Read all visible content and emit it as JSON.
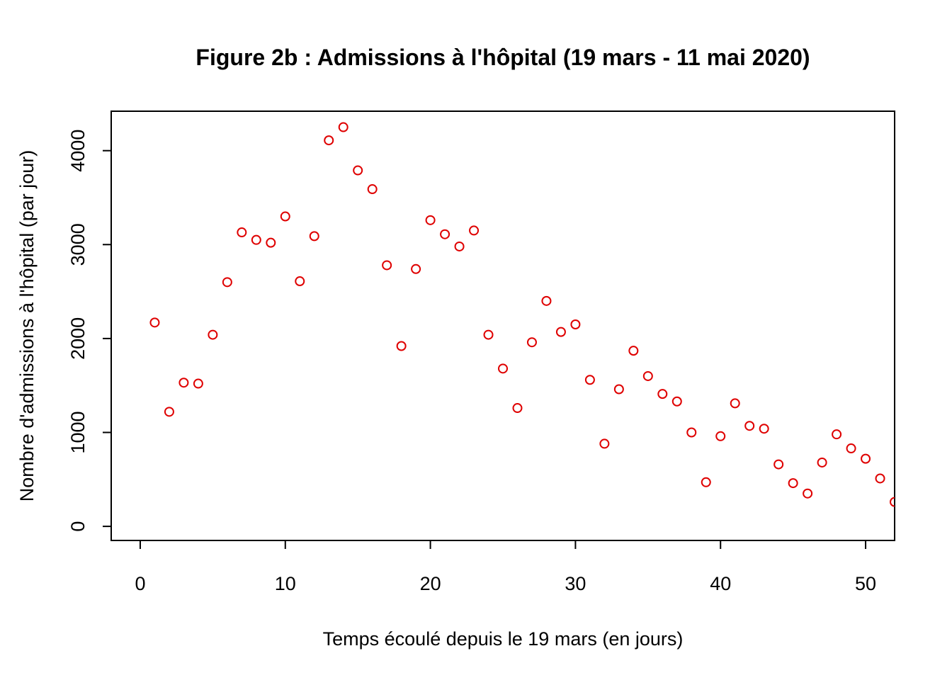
{
  "chart_data": {
    "type": "scatter",
    "title": "Figure 2b : Admissions à l'hôpital (19 mars - 11 mai 2020)",
    "xlabel": "Temps écoulé depuis le 19 mars (en jours)",
    "ylabel": "Nombre d'admissions à l'hôpital (par jour)",
    "xlim": [
      -2,
      52
    ],
    "ylim": [
      -150,
      4420
    ],
    "x_ticks": [
      "0",
      "10",
      "20",
      "30",
      "40",
      "50"
    ],
    "y_ticks": [
      "0",
      "1000",
      "2000",
      "3000",
      "4000"
    ],
    "marker_color": "#DF0000",
    "grid": false,
    "x": [
      1,
      2,
      3,
      4,
      5,
      6,
      7,
      8,
      9,
      10,
      11,
      12,
      13,
      14,
      15,
      16,
      17,
      18,
      19,
      20,
      21,
      22,
      23,
      24,
      25,
      26,
      27,
      28,
      29,
      30,
      31,
      32,
      33,
      34,
      35,
      36,
      37,
      38,
      39,
      40,
      41,
      42,
      43,
      44,
      45,
      46,
      47,
      48,
      49,
      50,
      51,
      52
    ],
    "y": [
      2170,
      1220,
      1530,
      1520,
      2040,
      2600,
      3130,
      3050,
      3020,
      3300,
      2610,
      3090,
      4110,
      4250,
      3790,
      3590,
      2780,
      1920,
      2740,
      3260,
      3110,
      2980,
      3150,
      2040,
      1680,
      1260,
      1960,
      2400,
      2070,
      2150,
      1560,
      880,
      1460,
      1870,
      1600,
      1410,
      1330,
      1000,
      470,
      960,
      1310,
      1070,
      1040,
      660,
      460,
      350,
      680,
      980,
      830,
      720,
      510,
      260
    ]
  }
}
